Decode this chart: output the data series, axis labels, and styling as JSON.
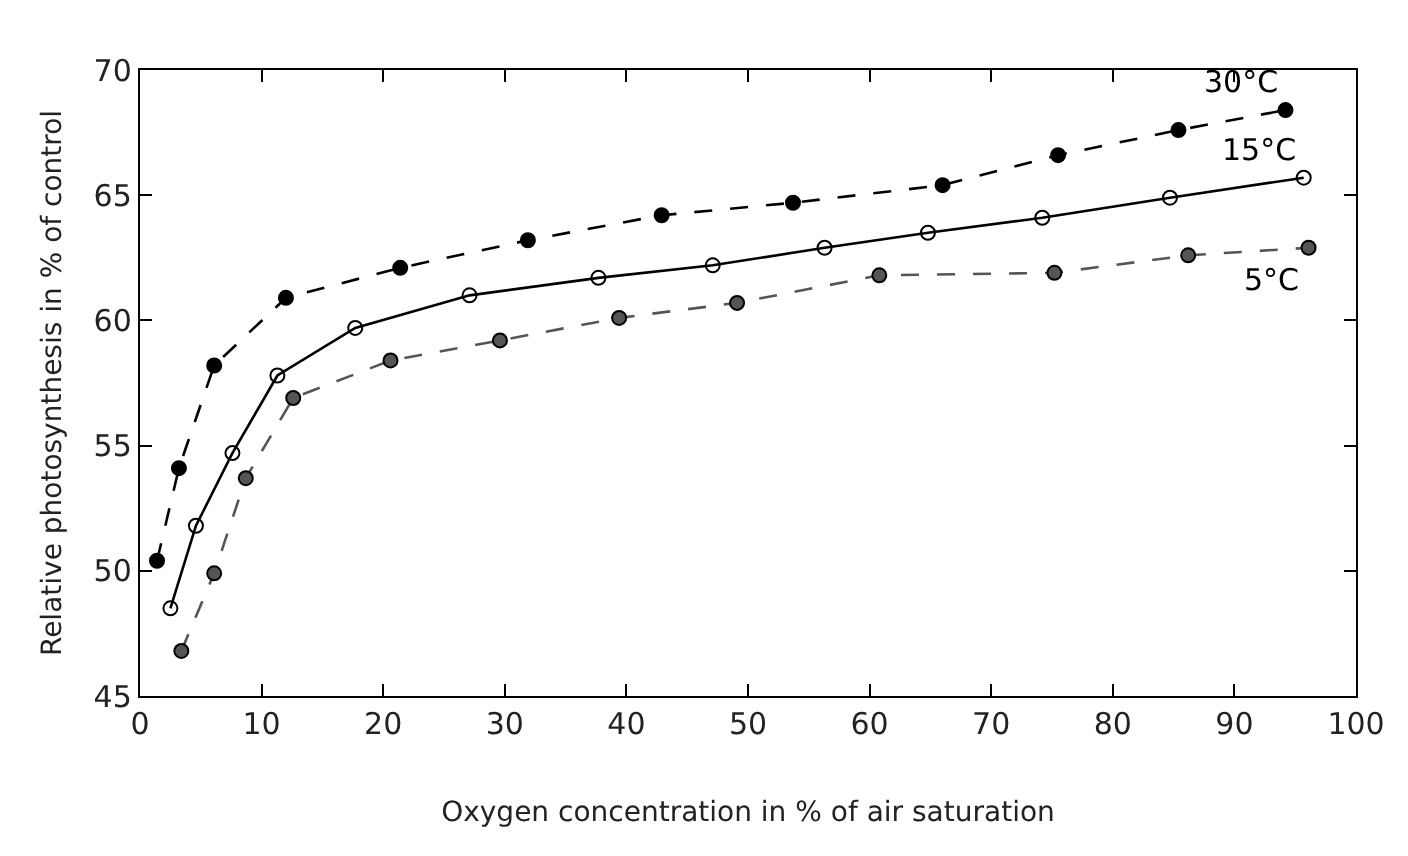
{
  "chart_data": {
    "type": "line",
    "xlabel": "Oxygen concentration in % of air saturation",
    "ylabel": "Relative photosynthesis in % of control",
    "xlim": [
      0,
      100
    ],
    "xticks": [
      0,
      10,
      20,
      30,
      40,
      50,
      60,
      70,
      80,
      90,
      100
    ],
    "ylim": [
      45,
      70
    ],
    "yticks": [
      45,
      50,
      55,
      60,
      65,
      70
    ],
    "legend": false,
    "series": [
      {
        "name": "30°C",
        "color": "#000000",
        "line_style": "dashed",
        "marker": "circle",
        "x": [
          1.4,
          3.2,
          6.1,
          12,
          21.4,
          31.9,
          42.9,
          53.7,
          66,
          75.5,
          85.4,
          94.2
        ],
        "values": [
          50.4,
          54.1,
          58.2,
          60.9,
          62.1,
          63.2,
          64.2,
          64.7,
          65.4,
          66.6,
          67.6,
          68.4
        ]
      },
      {
        "name": "15°C",
        "color": "#000000",
        "line_style": "solid",
        "marker": "circle-open",
        "x": [
          2.5,
          4.6,
          7.6,
          11.3,
          17.7,
          27.1,
          37.7,
          47.1,
          56.3,
          64.8,
          74.2,
          84.7,
          95.7
        ],
        "values": [
          48.5,
          51.8,
          54.7,
          57.8,
          59.7,
          61.0,
          61.7,
          62.2,
          62.9,
          63.5,
          64.1,
          64.9,
          65.7
        ]
      },
      {
        "name": "5°C",
        "color": "#555555",
        "line_style": "dashed",
        "marker": "circle",
        "x": [
          3.4,
          6.1,
          8.7,
          12.6,
          20.6,
          29.6,
          39.4,
          49.1,
          60.8,
          75.2,
          86.2,
          96.1
        ],
        "values": [
          46.8,
          49.9,
          53.7,
          56.9,
          58.4,
          59.2,
          60.1,
          60.7,
          61.8,
          61.9,
          62.6,
          62.9
        ]
      }
    ]
  }
}
